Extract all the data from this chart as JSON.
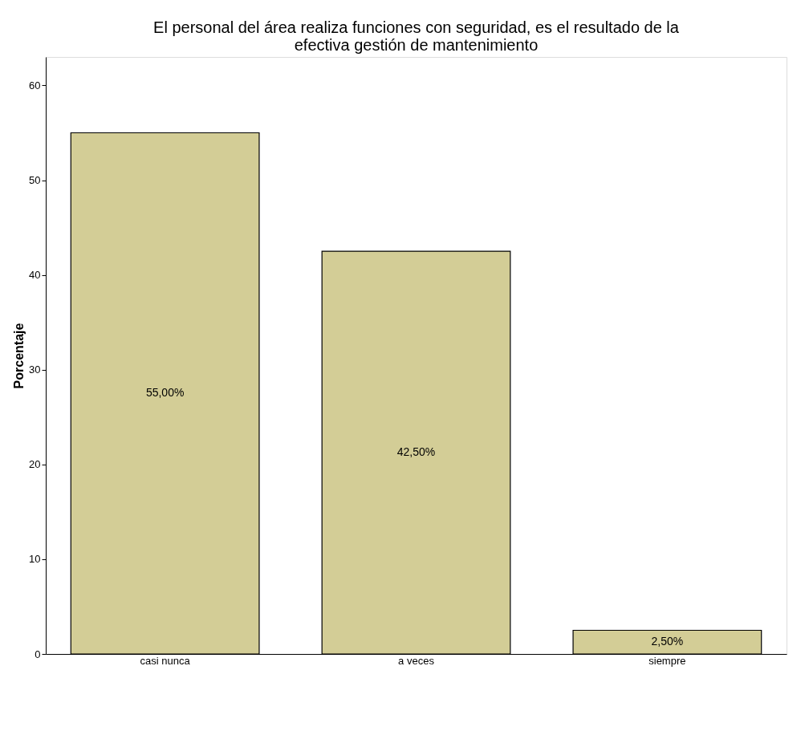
{
  "chart_data": {
    "type": "bar",
    "title": [
      "El personal del área realiza funciones con seguridad, es el resultado de la",
      "efectiva gestión de mantenimiento"
    ],
    "ylabel": "Porcentaje",
    "categories": [
      "casi nunca",
      "a veces",
      "siempre"
    ],
    "values": [
      55,
      42.5,
      2.5
    ],
    "value_labels": [
      "55,00%",
      "42,50%",
      "2,50%"
    ],
    "color": "#d3cd96",
    "ylim": [
      0,
      63
    ],
    "yticks": [
      0,
      10,
      20,
      30,
      40,
      50,
      60
    ],
    "grid": false
  }
}
